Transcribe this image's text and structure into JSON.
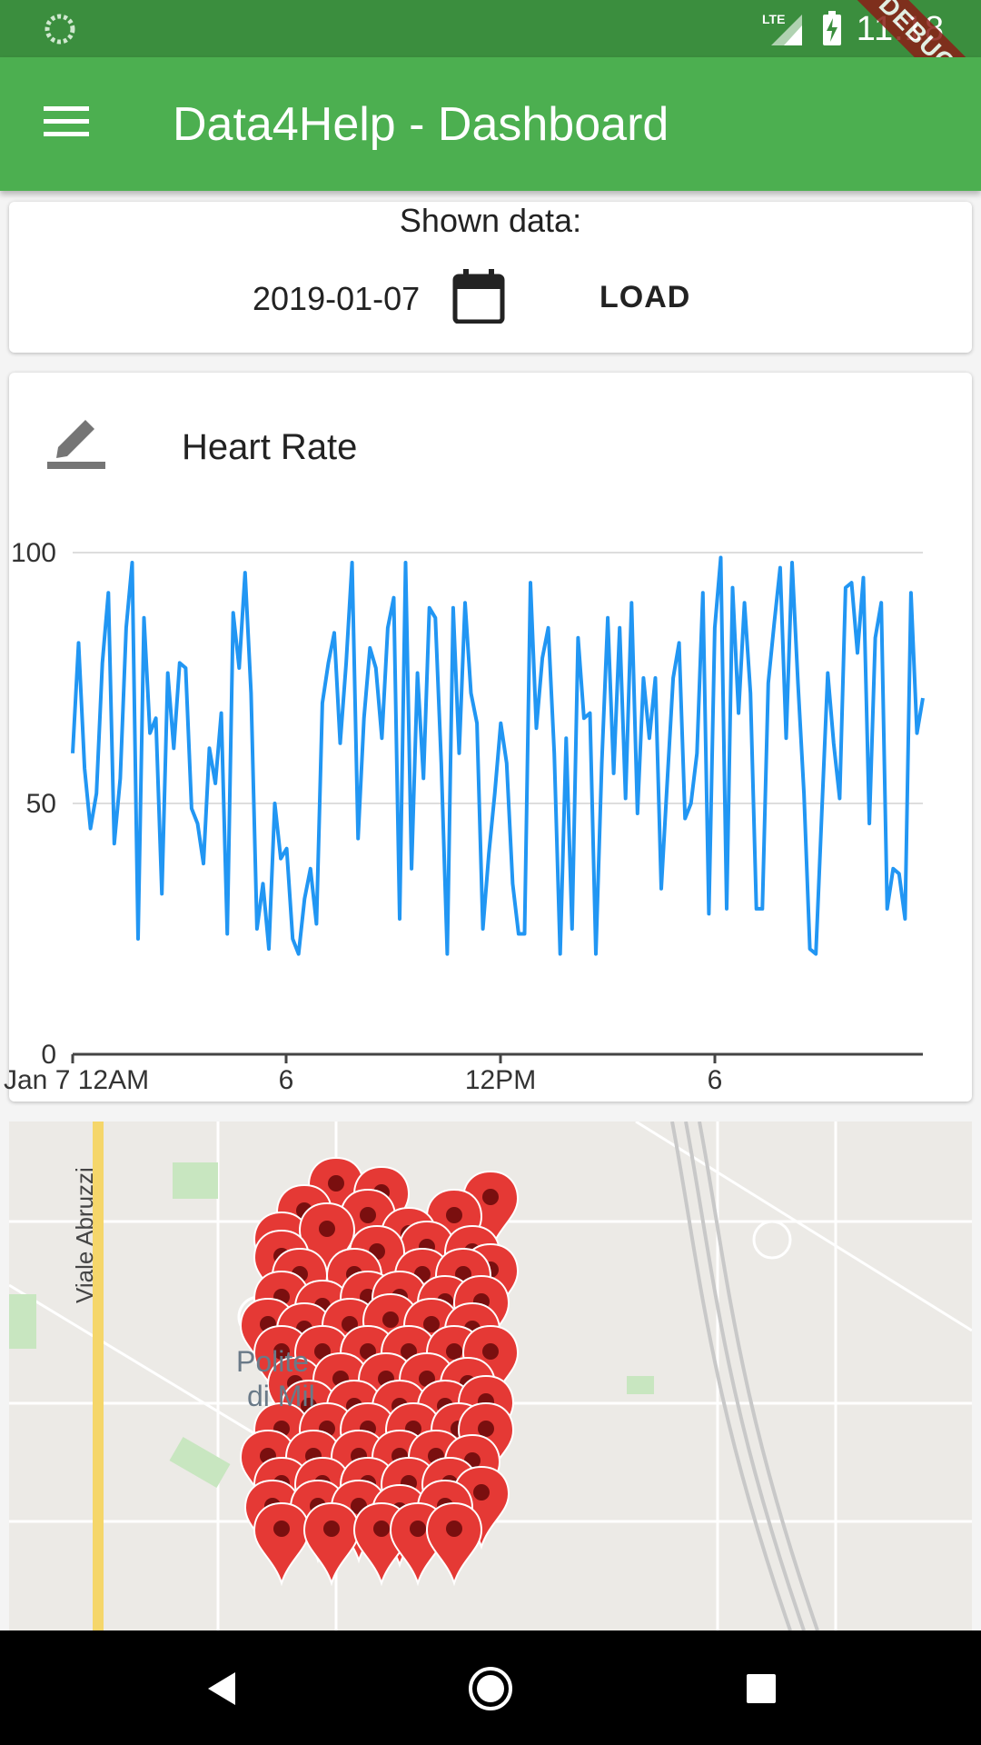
{
  "status_bar": {
    "time": "11:18",
    "network": "LTE",
    "debug_banner": "DEBUG"
  },
  "app_bar": {
    "title": "Data4Help - Dashboard"
  },
  "date_card": {
    "label": "Shown data:",
    "date": "2019-01-07",
    "load_label": "LOAD"
  },
  "heart_rate_card": {
    "title": "Heart Rate"
  },
  "chart_data": {
    "type": "line",
    "title": "Heart Rate",
    "xlabel": "",
    "ylabel": "",
    "ylim": [
      0,
      100
    ],
    "y_ticks": [
      "0",
      "50",
      "100"
    ],
    "x_ticks": [
      "Jan 7 12AM",
      "6",
      "12PM",
      "6"
    ],
    "grid": "horizontal",
    "color": "#2196f3",
    "series": [
      {
        "values": [
          60,
          82,
          57,
          45,
          52,
          78,
          92,
          42,
          55,
          85,
          98,
          23,
          87,
          64,
          67,
          32,
          76,
          61,
          78,
          77,
          49,
          46,
          38,
          61,
          54,
          68,
          24,
          88,
          77,
          96,
          72,
          25,
          34,
          21,
          50,
          39,
          41,
          23,
          20,
          31,
          37,
          26,
          70,
          78,
          84,
          62,
          78,
          98,
          43,
          67,
          81,
          77,
          63,
          85,
          91,
          27,
          98,
          37,
          76,
          55,
          89,
          87,
          58,
          20,
          89,
          60,
          90,
          72,
          66,
          25,
          40,
          52,
          66,
          58,
          34,
          24,
          24,
          94,
          65,
          79,
          85,
          60,
          20,
          63,
          25,
          83,
          67,
          68,
          20,
          58,
          87,
          56,
          85,
          51,
          90,
          48,
          75,
          63,
          75,
          33,
          54,
          75,
          82,
          47,
          50,
          60,
          92,
          28,
          85,
          99,
          29,
          93,
          68,
          90,
          72,
          29,
          29,
          74,
          86,
          97,
          63,
          98,
          74,
          52,
          21,
          20,
          48,
          76,
          62,
          51,
          93,
          94,
          80,
          95,
          46,
          83,
          90,
          29,
          37,
          36,
          27,
          92,
          64,
          71
        ]
      }
    ]
  },
  "map": {
    "street_label": "Viale Abruzzi",
    "place_label_line1": "Polite",
    "place_label_line2": "di Mil",
    "marker_color": "#e53935"
  },
  "nav_bar": {
    "back_icon": "back-triangle-icon",
    "home_icon": "home-circle-icon",
    "recents_icon": "recents-square-icon"
  }
}
